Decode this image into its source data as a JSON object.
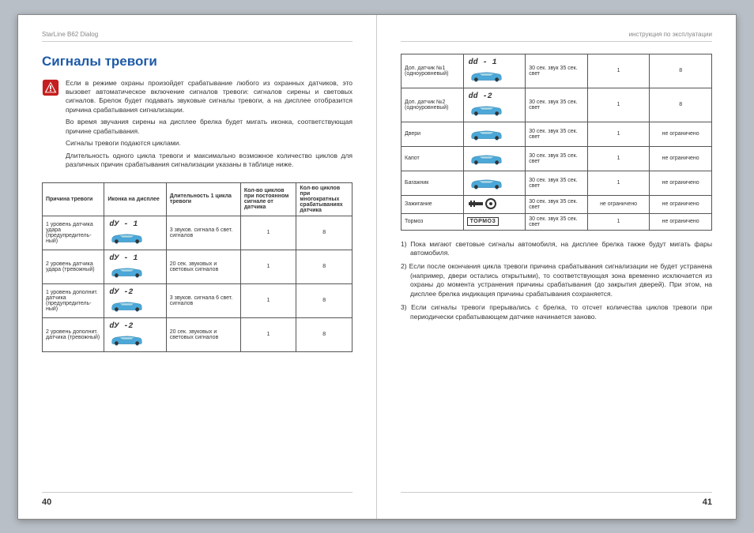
{
  "left_header": "StarLine B62 Dialog",
  "right_header": "инструкция по эксплуатации",
  "title": "Сигналы тревоги",
  "intro": {
    "p1": "Если в режиме охраны произойдет срабатывание любого из охранных датчиков, это вызовет автоматическое включение сигналов тревоги: сигналов сирены и  световых сигналов. Брелок будет подавать звуковые сигналы тревоги, а на дисплее отобразится причина срабатывания сигнализации.",
    "p2": "Во время звучания сирены на дисплее брелка будет мигать иконка, соответствующая причине срабатывания.",
    "p3": "Сигналы тревоги подаются циклами.",
    "p4": "Длительность одного цикла тревоги и максимально возможное количество циклов для различных причин срабатывания сигнализации указаны в таблице ниже."
  },
  "table1": {
    "headers": [
      "Причина тревоги",
      "Иконка на дисплее",
      "Длительность 1 цикла тревоги",
      "Кол-во циклов при постоянном сигнале от датчика",
      "Кол-во циклов при многократных срабатываниях датчика"
    ],
    "rows": [
      {
        "cause": "1 уровень датчика удара (предупредитель-ный)",
        "icon": "dУ - 1",
        "dur": "3 звуков. сигнала 6 свет. сигналов",
        "c1": "1",
        "c2": "8"
      },
      {
        "cause": "2 уровень датчика удара (тревожный)",
        "icon": "dУ - 1",
        "dur": "20 сек. звуковых и световых сигналов",
        "c1": "1",
        "c2": "8"
      },
      {
        "cause": "1 уровень дополнит. датчика (предупредитель-ный)",
        "icon": "dУ -2",
        "dur": "3 звуков. сигнала 6 свет. сигналов",
        "c1": "1",
        "c2": "8"
      },
      {
        "cause": "2 уровень дополнит. датчика (тревожный)",
        "icon": "dУ -2",
        "dur": "20 сек. звуковых и световых сигналов",
        "c1": "1",
        "c2": "8"
      }
    ]
  },
  "table2": {
    "rows": [
      {
        "cause": "Доп. датчик №1 (одноуровневый)",
        "icon": "dd - 1",
        "dur": "30 сек. звук 35 сек. свет",
        "c1": "1",
        "c2": "8"
      },
      {
        "cause": "Доп. датчик №2 (одноуровневый)",
        "icon": "dd -2",
        "dur": "30 сек. звук 35 сек. свет",
        "c1": "1",
        "c2": "8"
      },
      {
        "cause": "Двери",
        "icon": "",
        "dur": "30 сек. звук 35 сек. свет",
        "c1": "1",
        "c2": "не ограничено"
      },
      {
        "cause": "Капот",
        "icon": "",
        "dur": "30 сек. звук 35 сек. свет",
        "c1": "1",
        "c2": "не ограничено"
      },
      {
        "cause": "Багажник",
        "icon": "",
        "dur": "30 сек. звук 35 сек. свет",
        "c1": "1",
        "c2": "не ограничено"
      },
      {
        "cause": "Зажигание",
        "icon": "key",
        "dur": "30 сек. звук 35 сек. свет",
        "c1": "не ограничено",
        "c2": "не ограничено"
      },
      {
        "cause": "Тормоз",
        "icon": "ТОРМОЗ",
        "dur": "30 сек. звук 35 сек. свет",
        "c1": "1",
        "c2": "не ограничено"
      }
    ]
  },
  "notes": {
    "n1": "1) Пока мигают световые сигналы автомобиля, на дисплее брелка  также будут мигать фары автомобиля.",
    "n2": "2) Если после окончания цикла тревоги причина срабатывания сигнализации не будет устранена (например, двери остались открытыми), то соответствующая зона временно исключается из охраны  до момента устранения причины срабатывания (до закрытия дверей). При этом,  на дисплее брелка индикация причины срабатывания сохраняется.",
    "n3": "3) Если сигналы тревоги прерывались с брелка, то отсчет количества циклов тревоги при периодически срабатывающем датчике начинается заново."
  },
  "page_left": "40",
  "page_right": "41",
  "colors": {
    "title": "#1e5aa8",
    "car": "#4ba8d8",
    "warn_bg": "#c41e1e"
  }
}
